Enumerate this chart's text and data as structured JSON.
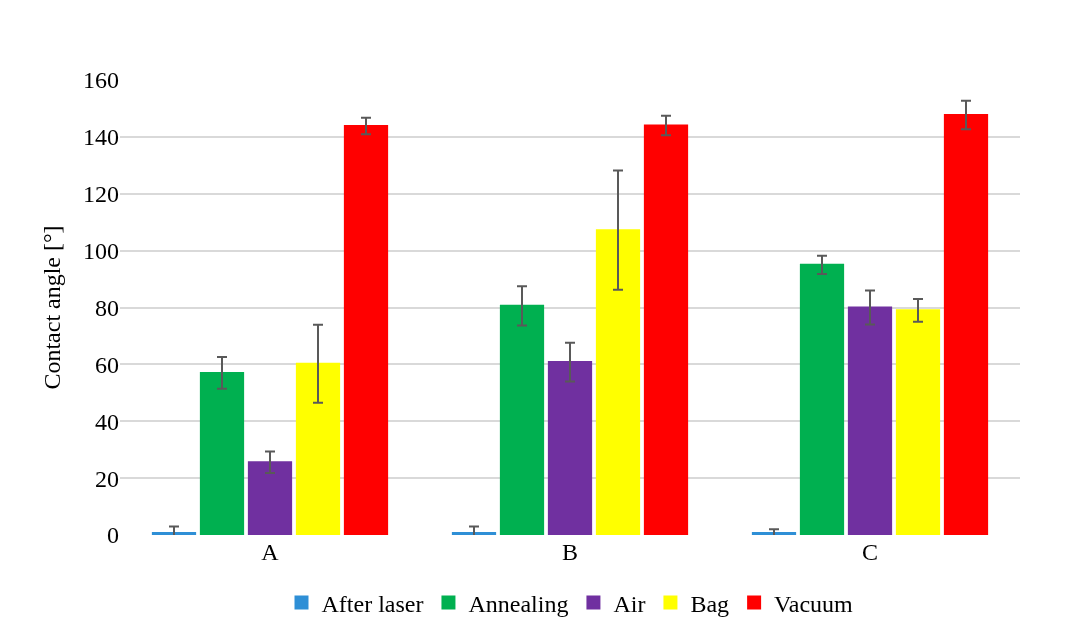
{
  "chart_data": {
    "type": "bar",
    "ylabel": "Contact angle [°]",
    "categories": [
      "A",
      "B",
      "C"
    ],
    "series": [
      {
        "name": "After laser",
        "color": "#2e8fd6",
        "values": [
          0.7,
          0.7,
          0.7
        ],
        "errors": [
          2.3,
          2.3,
          1.3
        ]
      },
      {
        "name": "Annealing",
        "color": "#00b050",
        "values": [
          57,
          80.6,
          95
        ],
        "errors": [
          5.6,
          6.9,
          3.2
        ]
      },
      {
        "name": "Air",
        "color": "#7030a0",
        "values": [
          25.6,
          60.8,
          80
        ],
        "errors": [
          3.8,
          6.8,
          6
        ]
      },
      {
        "name": "Bag",
        "color": "#ffff00",
        "values": [
          60.2,
          107.2,
          79
        ],
        "errors": [
          13.7,
          21,
          4
        ]
      },
      {
        "name": "Vacuum",
        "color": "#ff0000",
        "values": [
          143.8,
          144,
          147.7
        ],
        "errors": [
          2.9,
          3.4,
          5
        ]
      }
    ],
    "ylim": [
      0,
      160
    ],
    "yticks": [
      0,
      20,
      40,
      60,
      80,
      100,
      120,
      140,
      160
    ],
    "grid": "y",
    "legend": "bottom"
  }
}
